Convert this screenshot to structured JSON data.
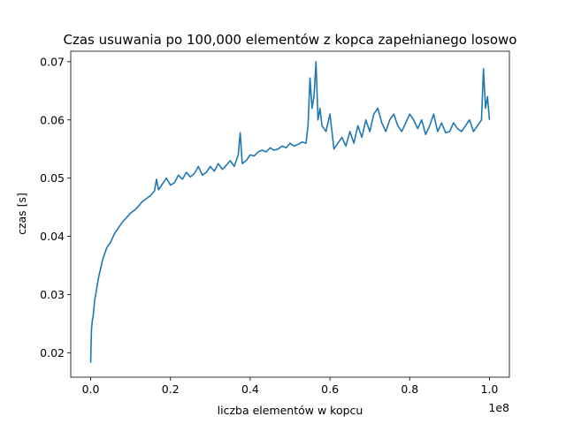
{
  "chart_data": {
    "type": "line",
    "title": "Czas usuwania po 100,000 elementów z kopca zapełnianego losowo",
    "xlabel": "liczba elementów w kopcu",
    "ylabel": "czas [s]",
    "x_offset_label": "1e8",
    "xlim": [
      -5000000,
      105000000
    ],
    "ylim": [
      0.0158,
      0.0718
    ],
    "x_ticks": [
      0,
      20000000,
      40000000,
      60000000,
      80000000,
      100000000
    ],
    "x_tick_labels": [
      "0.0",
      "0.2",
      "0.4",
      "0.6",
      "0.8",
      "1.0"
    ],
    "y_ticks": [
      0.02,
      0.03,
      0.04,
      0.05,
      0.06,
      0.07
    ],
    "y_tick_labels": [
      "0.02",
      "0.03",
      "0.04",
      "0.05",
      "0.06",
      "0.07"
    ],
    "grid": false,
    "colors": {
      "line": "#1f77b4"
    },
    "series": [
      {
        "x": [
          0,
          100000,
          200000,
          400000,
          600000,
          800000,
          1000000,
          1500000,
          2000000,
          2500000,
          3000000,
          3500000,
          4000000,
          5000000,
          6000000,
          7000000,
          8000000,
          9000000,
          10000000,
          11000000,
          12000000,
          13000000,
          14000000,
          15000000,
          16000000,
          16500000,
          17000000,
          18000000,
          19000000,
          20000000,
          21000000,
          22000000,
          23000000,
          24000000,
          25000000,
          26000000,
          27000000,
          28000000,
          29000000,
          30000000,
          31000000,
          32000000,
          33000000,
          34000000,
          35000000,
          36000000,
          37000000,
          37500000,
          38000000,
          39000000,
          40000000,
          41000000,
          42000000,
          43000000,
          44000000,
          45000000,
          46000000,
          47000000,
          48000000,
          49000000,
          50000000,
          51000000,
          52000000,
          53000000,
          54000000,
          54500000,
          55000000,
          55500000,
          56000000,
          56500000,
          57000000,
          57500000,
          58000000,
          59000000,
          60000000,
          61000000,
          62000000,
          63000000,
          64000000,
          65000000,
          66000000,
          67000000,
          68000000,
          69000000,
          70000000,
          71000000,
          72000000,
          73000000,
          74000000,
          75000000,
          76000000,
          77000000,
          78000000,
          79000000,
          80000000,
          81000000,
          82000000,
          83000000,
          84000000,
          85000000,
          86000000,
          87000000,
          88000000,
          89000000,
          90000000,
          91000000,
          92000000,
          93000000,
          94000000,
          95000000,
          96000000,
          97000000,
          98000000,
          98500000,
          99000000,
          99500000,
          100000000
        ],
        "y": [
          0.0183,
          0.0215,
          0.024,
          0.0255,
          0.0262,
          0.0275,
          0.029,
          0.031,
          0.033,
          0.0345,
          0.036,
          0.037,
          0.038,
          0.039,
          0.0405,
          0.0415,
          0.0425,
          0.0432,
          0.044,
          0.0445,
          0.0452,
          0.046,
          0.0465,
          0.047,
          0.0478,
          0.0498,
          0.048,
          0.049,
          0.05,
          0.0488,
          0.0492,
          0.0505,
          0.0498,
          0.051,
          0.0502,
          0.0508,
          0.052,
          0.0505,
          0.051,
          0.052,
          0.0512,
          0.0525,
          0.0515,
          0.0522,
          0.053,
          0.052,
          0.054,
          0.0578,
          0.0525,
          0.053,
          0.054,
          0.0538,
          0.0545,
          0.0548,
          0.0545,
          0.0552,
          0.0548,
          0.055,
          0.0555,
          0.0552,
          0.056,
          0.0555,
          0.0558,
          0.0562,
          0.056,
          0.059,
          0.0672,
          0.062,
          0.064,
          0.07,
          0.06,
          0.062,
          0.059,
          0.058,
          0.061,
          0.055,
          0.056,
          0.057,
          0.0555,
          0.058,
          0.056,
          0.059,
          0.057,
          0.06,
          0.058,
          0.061,
          0.062,
          0.0595,
          0.058,
          0.06,
          0.061,
          0.059,
          0.058,
          0.0595,
          0.061,
          0.06,
          0.0585,
          0.06,
          0.0575,
          0.059,
          0.061,
          0.058,
          0.0595,
          0.0578,
          0.058,
          0.0595,
          0.0585,
          0.058,
          0.059,
          0.06,
          0.058,
          0.059,
          0.06,
          0.0688,
          0.062,
          0.064,
          0.06
        ]
      }
    ]
  }
}
